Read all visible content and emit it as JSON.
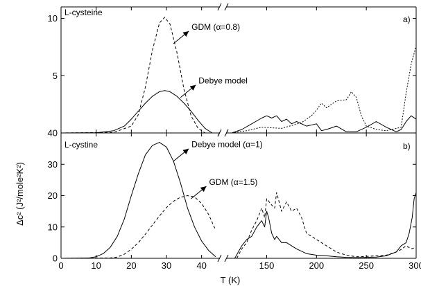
{
  "chart_data": [
    {
      "type": "line",
      "panel_label": "a)",
      "sample": "L-cysteine",
      "xlim": [
        0,
        300
      ],
      "x_break": [
        45,
        110
      ],
      "ylim": [
        0,
        11
      ],
      "yticks": [
        {
          "value": 0,
          "label": "0"
        },
        {
          "value": 5,
          "label": "5"
        },
        {
          "value": 10,
          "label": "10"
        }
      ],
      "annotations": [
        {
          "text": "GDM (α=0.8)",
          "x": 32,
          "y": 7.8
        },
        {
          "text": "Debye model",
          "x": 34,
          "y": 3.1
        }
      ],
      "series": [
        {
          "style": "solid",
          "x": [
            0,
            10,
            15,
            18,
            20,
            22,
            24,
            26,
            28,
            29.5,
            31,
            33,
            35,
            37,
            39,
            41,
            43,
            44
          ],
          "y": [
            0,
            0.02,
            0.2,
            0.6,
            1.2,
            1.9,
            2.6,
            3.2,
            3.6,
            3.7,
            3.6,
            3.2,
            2.6,
            1.9,
            1.1,
            0.4,
            0.0,
            0.0
          ]
        },
        {
          "style": "dashed",
          "x": [
            0,
            15,
            20,
            22,
            24,
            26,
            28,
            29.5,
            31,
            33,
            35,
            37,
            39,
            41
          ],
          "y": [
            0,
            0.05,
            0.6,
            1.6,
            4.0,
            7.2,
            9.6,
            10.1,
            9.5,
            7.0,
            3.8,
            1.5,
            0.4,
            0.0
          ]
        },
        {
          "style": "solid",
          "x": [
            115,
            125,
            135,
            145,
            150,
            155,
            160,
            165,
            170,
            175,
            180,
            190,
            200,
            205,
            210,
            220,
            230,
            240,
            250,
            260,
            270,
            280,
            285,
            290,
            295,
            300
          ],
          "y": [
            0,
            0.3,
            0.8,
            1.3,
            1.5,
            1.3,
            1.5,
            1.0,
            1.2,
            0.8,
            1.0,
            0.6,
            0.8,
            0.2,
            0.3,
            0.6,
            0.1,
            0.1,
            0.5,
            1.0,
            0.5,
            0.1,
            0.3,
            1.0,
            1.5,
            1.2
          ]
        },
        {
          "style": "dotted",
          "x": [
            115,
            130,
            145,
            165,
            185,
            195,
            200,
            205,
            210,
            220,
            230,
            235,
            240,
            245,
            250,
            260,
            270,
            280,
            285,
            290,
            295,
            300
          ],
          "y": [
            0,
            0.2,
            0.5,
            0.4,
            0.9,
            1.5,
            2.0,
            2.6,
            2.2,
            2.8,
            2.9,
            3.6,
            3.1,
            1.5,
            0.6,
            0.3,
            0.2,
            0.4,
            0.5,
            3.5,
            6.0,
            7.6
          ]
        }
      ]
    },
    {
      "type": "line",
      "panel_label": "b)",
      "sample": "L-cystine",
      "xlim": [
        0,
        300
      ],
      "x_break": [
        45,
        110
      ],
      "ylim": [
        0,
        40
      ],
      "yticks": [
        {
          "value": 0,
          "label": "0"
        },
        {
          "value": 10,
          "label": "10"
        },
        {
          "value": 20,
          "label": "20"
        },
        {
          "value": 30,
          "label": "30"
        },
        {
          "value": 40,
          "label": "40"
        }
      ],
      "xticks": [
        {
          "value": 0,
          "label": "0"
        },
        {
          "value": 10,
          "label": "10"
        },
        {
          "value": 20,
          "label": "20"
        },
        {
          "value": 30,
          "label": "30"
        },
        {
          "value": 40,
          "label": "40"
        },
        {
          "value": 150,
          "label": "150"
        },
        {
          "value": 200,
          "label": "200"
        },
        {
          "value": 250,
          "label": "250"
        },
        {
          "value": 300,
          "label": "300"
        }
      ],
      "xlabel": "T (K)",
      "ylabel": "Δc² (J²/mole²K²)",
      "annotations": [
        {
          "text": "Debye model (α=1)",
          "x": 32,
          "y": 31
        },
        {
          "text": "GDM (α=1.5)",
          "x": 37,
          "y": 19
        }
      ],
      "series": [
        {
          "style": "solid",
          "x": [
            0,
            8,
            10,
            12,
            14,
            16,
            18,
            20,
            22,
            24,
            26,
            28,
            30,
            32,
            34,
            36,
            38,
            40,
            42,
            44
          ],
          "y": [
            0,
            0.1,
            0.5,
            1.5,
            3.5,
            7.0,
            12.5,
            20.0,
            27.0,
            33.0,
            36.0,
            37.0,
            35.5,
            31.0,
            24.0,
            16.0,
            10.0,
            5.5,
            2.5,
            0.5
          ]
        },
        {
          "style": "dashed",
          "x": [
            0,
            14,
            16,
            18,
            20,
            22,
            24,
            26,
            28,
            30,
            32,
            34,
            36,
            38,
            40,
            42,
            44
          ],
          "y": [
            0,
            0.1,
            0.4,
            1.3,
            2.9,
            5.0,
            7.7,
            10.6,
            13.5,
            16.2,
            18.2,
            19.5,
            20.0,
            19.6,
            17.5,
            14.0,
            9.0
          ]
        },
        {
          "style": "solid",
          "x": [
            118,
            125,
            130,
            135,
            140,
            145,
            148,
            150,
            152,
            155,
            158,
            160,
            165,
            170,
            175,
            180,
            190,
            200,
            210,
            220,
            230,
            240,
            250,
            260,
            270,
            280,
            285,
            290,
            293,
            296,
            298,
            300
          ],
          "y": [
            0,
            4,
            6,
            7,
            10,
            12,
            10,
            15,
            13,
            8,
            6,
            7,
            5,
            5,
            4,
            3,
            1.5,
            1,
            0.8,
            0.5,
            0.3,
            0.2,
            0.3,
            0.4,
            0.8,
            2,
            4,
            5,
            8,
            13,
            19,
            21
          ]
        },
        {
          "style": "dashed",
          "x": [
            120,
            125,
            130,
            135,
            140,
            145,
            148,
            150,
            155,
            158,
            160,
            165,
            170,
            175,
            180,
            185,
            190,
            195,
            200,
            210,
            215,
            220,
            230,
            240,
            250,
            260,
            270,
            280,
            285,
            290,
            295,
            300
          ],
          "y": [
            0,
            3,
            5,
            9,
            12,
            16,
            13,
            19,
            17,
            16,
            21,
            15,
            18,
            15,
            16,
            13,
            8,
            7,
            6,
            4,
            3,
            2,
            1,
            0.5,
            0.6,
            0.8,
            1,
            2,
            2.8,
            4,
            3,
            3.5
          ]
        }
      ]
    }
  ]
}
